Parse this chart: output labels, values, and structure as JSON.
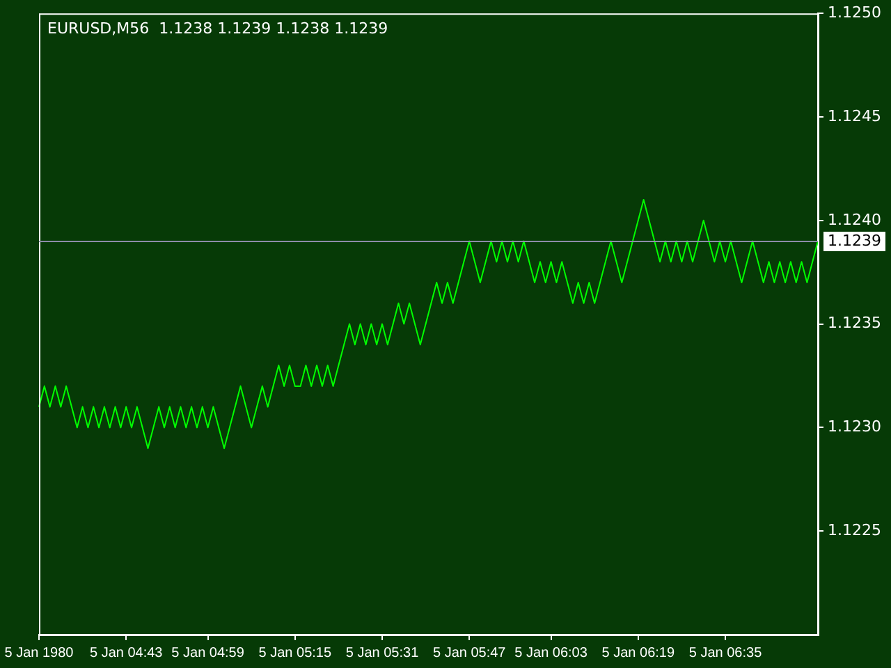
{
  "chart_data": {
    "type": "line",
    "title": "EURUSD,M56  1.1238 1.1239 1.1238 1.1239",
    "categories": [
      "5 Jan 1980",
      null,
      null,
      null,
      null,
      null,
      null,
      null,
      null,
      null,
      null,
      null,
      null,
      null,
      null,
      null,
      "5 Jan 04:43",
      null,
      null,
      null,
      null,
      null,
      null,
      null,
      null,
      null,
      null,
      null,
      null,
      null,
      null,
      "5 Jan 04:59",
      null,
      null,
      null,
      null,
      null,
      null,
      null,
      null,
      null,
      null,
      null,
      null,
      null,
      null,
      null,
      "5 Jan 05:15",
      null,
      null,
      null,
      null,
      null,
      null,
      null,
      null,
      null,
      null,
      null,
      null,
      null,
      null,
      null,
      "5 Jan 05:31",
      null,
      null,
      null,
      null,
      null,
      null,
      null,
      null,
      null,
      null,
      null,
      null,
      null,
      null,
      null,
      "5 Jan 05:47",
      null,
      null,
      null,
      null,
      null,
      null,
      null,
      null,
      null,
      null,
      null,
      null,
      null,
      null,
      "5 Jan 06:03",
      null,
      null,
      null,
      null,
      null,
      null,
      null,
      null,
      null,
      null,
      null,
      null,
      null,
      null,
      null,
      "5 Jan 06:19",
      null,
      null,
      null,
      null,
      null,
      null,
      null,
      null,
      null,
      null,
      null,
      null,
      null,
      null,
      null,
      "5 Jan 06:35",
      null,
      null,
      null,
      null,
      null,
      null,
      null,
      null,
      null,
      null,
      null,
      null,
      null,
      null,
      null,
      null,
      null
    ],
    "series": [
      {
        "color": "#00ff00",
        "values": [
          1.1231,
          1.1232,
          1.1231,
          1.1232,
          1.1231,
          1.1232,
          1.1231,
          1.123,
          1.1231,
          1.123,
          1.1231,
          1.123,
          1.1231,
          1.123,
          1.1231,
          1.123,
          1.1231,
          1.123,
          1.1231,
          1.123,
          1.1229,
          1.123,
          1.1231,
          1.123,
          1.1231,
          1.123,
          1.1231,
          1.123,
          1.1231,
          1.123,
          1.1231,
          1.123,
          1.1231,
          1.123,
          1.1229,
          1.123,
          1.1231,
          1.1232,
          1.1231,
          1.123,
          1.1231,
          1.1232,
          1.1231,
          1.1232,
          1.1233,
          1.1232,
          1.1233,
          1.1232,
          1.1232,
          1.1233,
          1.1232,
          1.1233,
          1.1232,
          1.1233,
          1.1232,
          1.1233,
          1.1234,
          1.1235,
          1.1234,
          1.1235,
          1.1234,
          1.1235,
          1.1234,
          1.1235,
          1.1234,
          1.1235,
          1.1236,
          1.1235,
          1.1236,
          1.1235,
          1.1234,
          1.1235,
          1.1236,
          1.1237,
          1.1236,
          1.1237,
          1.1236,
          1.1237,
          1.1238,
          1.1239,
          1.1238,
          1.1237,
          1.1238,
          1.1239,
          1.1238,
          1.1239,
          1.1238,
          1.1239,
          1.1238,
          1.1239,
          1.1238,
          1.1237,
          1.1238,
          1.1237,
          1.1238,
          1.1237,
          1.1238,
          1.1237,
          1.1236,
          1.1237,
          1.1236,
          1.1237,
          1.1236,
          1.1237,
          1.1238,
          1.1239,
          1.1238,
          1.1237,
          1.1238,
          1.1239,
          1.124,
          1.1241,
          1.124,
          1.1239,
          1.1238,
          1.1239,
          1.1238,
          1.1239,
          1.1238,
          1.1239,
          1.1238,
          1.1239,
          1.124,
          1.1239,
          1.1238,
          1.1239,
          1.1238,
          1.1239,
          1.1238,
          1.1237,
          1.1238,
          1.1239,
          1.1238,
          1.1237,
          1.1238,
          1.1237,
          1.1238,
          1.1237,
          1.1238,
          1.1237,
          1.1238,
          1.1237,
          1.1238,
          1.1239
        ]
      }
    ],
    "ylim": [
      1.122,
      1.125
    ],
    "yticks": [
      {
        "value": 1.1225,
        "label": "1.1225"
      },
      {
        "value": 1.123,
        "label": "1.1230"
      },
      {
        "value": 1.1235,
        "label": "1.1235"
      },
      {
        "value": 1.124,
        "label": "1.1240"
      },
      {
        "value": 1.1245,
        "label": "1.1245"
      },
      {
        "value": 1.125,
        "label": "1.1250"
      }
    ],
    "ref_lines": [
      {
        "axis": "y",
        "value": 1.1239,
        "label": "1.1239",
        "color": "#8c8ca8"
      }
    ],
    "grid": false,
    "marker": "none"
  }
}
